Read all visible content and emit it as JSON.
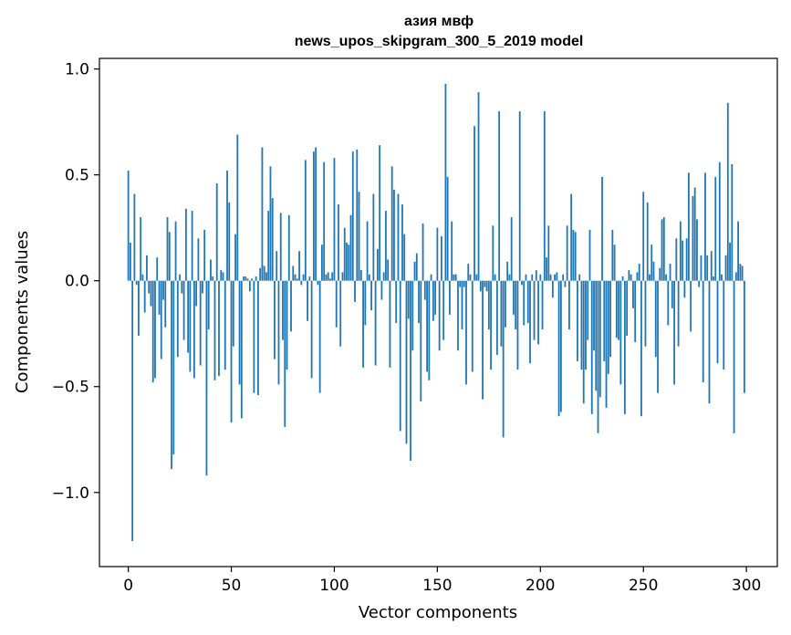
{
  "chart_data": {
    "type": "bar",
    "title": "азия мвф",
    "subtitle": "news_upos_skipgram_300_5_2019 model",
    "xlabel": "Vector components",
    "ylabel": "Components values",
    "xlim": [
      -14,
      315
    ],
    "ylim": [
      -1.35,
      1.05
    ],
    "xticks": [
      0,
      50,
      100,
      150,
      200,
      250,
      300
    ],
    "yticks": [
      -1.0,
      -0.5,
      0.0,
      0.5,
      1.0
    ],
    "xtick_labels": [
      "0",
      "50",
      "100",
      "150",
      "200",
      "250",
      "300"
    ],
    "ytick_labels": [
      "−1.0",
      "−0.5",
      "0.0",
      "0.5",
      "1.0"
    ],
    "bar_color": "#1f77b4",
    "grid": false,
    "values": [
      0.52,
      0.18,
      -1.23,
      0.41,
      -0.02,
      -0.26,
      0.3,
      0.03,
      -0.15,
      0.12,
      -0.06,
      -0.12,
      -0.48,
      -0.46,
      0.11,
      -0.16,
      -0.37,
      -0.09,
      -0.22,
      0.3,
      0.23,
      -0.89,
      -0.82,
      0.28,
      -0.36,
      0.03,
      -0.06,
      -0.28,
      0.34,
      -0.34,
      -0.43,
      0.33,
      -0.46,
      -0.12,
      0.2,
      -0.4,
      -0.06,
      0.24,
      -0.92,
      -0.23,
      0.1,
      0.02,
      -0.47,
      0.46,
      -0.45,
      0.05,
      0.04,
      -0.42,
      0.52,
      0.37,
      -0.67,
      -0.31,
      0.22,
      0.69,
      -0.49,
      -0.65,
      0.02,
      0.02,
      0.01,
      -0.05,
      0.01,
      -0.53,
      0.02,
      -0.54,
      0.06,
      0.63,
      0.07,
      0.04,
      0.33,
      0.54,
      0.39,
      -0.37,
      0.14,
      -0.49,
      0.32,
      -0.28,
      -0.69,
      -0.42,
      0.31,
      -0.24,
      0.07,
      0.03,
      0.01,
      0.14,
      -0.02,
      0.03,
      0.57,
      -0.19,
      0.02,
      -0.46,
      0.61,
      0.63,
      -0.02,
      -0.53,
      0.17,
      0.56,
      0.03,
      0.04,
      0.01,
      0.04,
      0.58,
      -0.22,
      0.36,
      -0.31,
      0.04,
      0.25,
      0.18,
      0.17,
      0.31,
      0.61,
      -0.1,
      0.62,
      0.42,
      0.05,
      -0.41,
      -0.21,
      0.28,
      0.03,
      -0.14,
      0.41,
      -0.4,
      0.15,
      0.64,
      -0.09,
      0.04,
      0.33,
      0.1,
      -0.41,
      0.54,
      0.43,
      -0.2,
      0.41,
      -0.71,
      0.36,
      0.22,
      -0.77,
      -0.18,
      -0.85,
      -0.33,
      0.09,
      0.13,
      -0.2,
      -0.57,
      0.27,
      -0.09,
      -0.43,
      -0.47,
      0.03,
      -0.19,
      -0.16,
      0.25,
      -0.33,
      0.21,
      -0.28,
      0.93,
      0.49,
      -0.16,
      0.28,
      0.03,
      0.03,
      -0.33,
      -0.03,
      -0.23,
      -0.03,
      -0.49,
      0.08,
      0.03,
      -0.43,
      0.73,
      0.03,
      0.89,
      -0.05,
      -0.56,
      -0.03,
      -0.05,
      -0.23,
      -0.42,
      0.26,
      0.03,
      -0.35,
      0.8,
      -0.31,
      -0.74,
      -0.22,
      0.09,
      0.03,
      0.3,
      -0.16,
      -0.23,
      -0.42,
      0.8,
      -0.02,
      -0.21,
      0.03,
      -0.2,
      -0.39,
      0.03,
      -0.28,
      0.05,
      -0.3,
      0.03,
      -0.23,
      0.8,
      0.11,
      0.26,
      0.03,
      -0.08,
      0.03,
      0.04,
      -0.64,
      -0.62,
      0.03,
      -0.03,
      0.26,
      -0.23,
      0.41,
      0.24,
      0.23,
      -0.38,
      0.03,
      -0.42,
      -0.58,
      -0.42,
      -0.28,
      0.24,
      -0.63,
      -0.33,
      -0.52,
      -0.72,
      -0.55,
      0.49,
      -0.38,
      -0.6,
      -0.44,
      -0.36,
      0.24,
      0.17,
      -0.27,
      -0.28,
      -0.49,
      0.02,
      -0.63,
      -0.26,
      0.05,
      0.03,
      -0.13,
      -0.29,
      0.04,
      0.08,
      -0.64,
      0.42,
      -0.31,
      0.37,
      0.03,
      0.17,
      0.09,
      -0.36,
      -0.53,
      0.06,
      0.29,
      0.3,
      0.03,
      -0.21,
      0.08,
      -0.13,
      -0.49,
      0.2,
      -0.31,
      0.28,
      0.19,
      -0.08,
      0.2,
      0.51,
      -0.24,
      0.4,
      0.44,
      0.29,
      -0.03,
      0.12,
      -0.48,
      0.51,
      0.12,
      -0.58,
      0.14,
      0.02,
      0.49,
      -0.39,
      0.56,
      0.03,
      -0.42,
      0.12,
      0.84,
      0.18,
      0.55,
      -0.72,
      0.04,
      0.28,
      0.08,
      0.07,
      -0.53
    ]
  }
}
